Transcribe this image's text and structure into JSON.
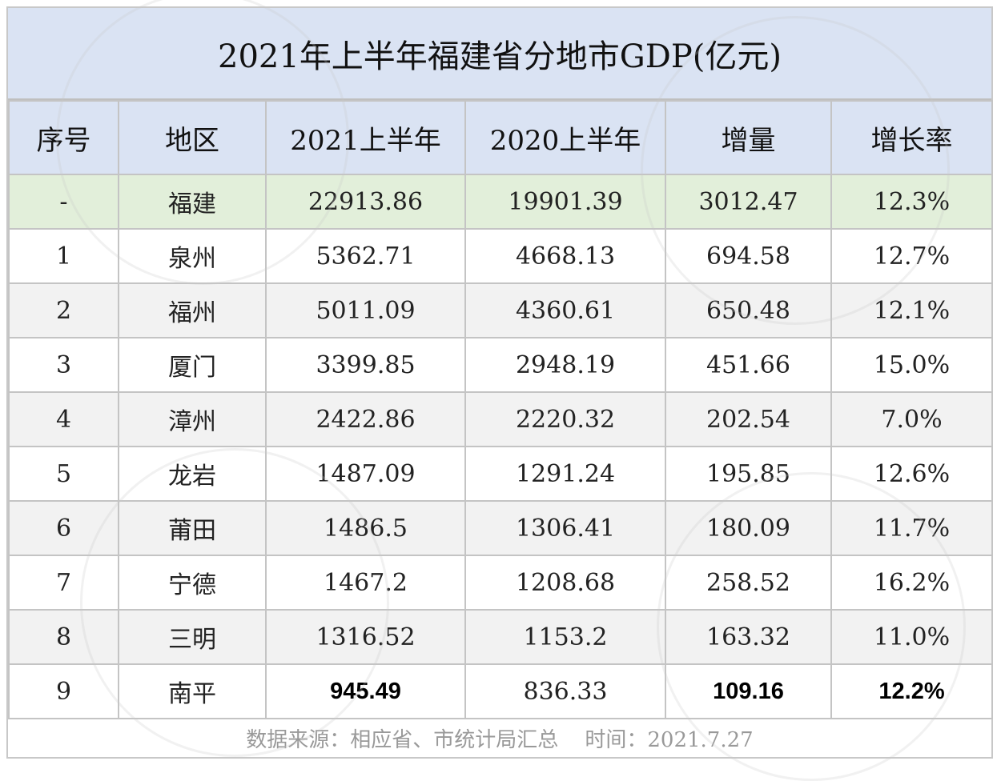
{
  "title": "2021年上半年福建省分地市GDP(亿元)",
  "headers": [
    "序号",
    "地区",
    "2021上半年",
    "2020上半年",
    "增量",
    "增长率"
  ],
  "rows": [
    [
      "-",
      "福建",
      "22913.86",
      "19901.39",
      "3012.47",
      "12.3%"
    ],
    [
      "1",
      "泉州",
      "5362.71",
      "4668.13",
      "694.58",
      "12.7%"
    ],
    [
      "2",
      "福州",
      "5011.09",
      "4360.61",
      "650.48",
      "12.1%"
    ],
    [
      "3",
      "厦门",
      "3399.85",
      "2948.19",
      "451.66",
      "15.0%"
    ],
    [
      "4",
      "漳州",
      "2422.86",
      "2220.32",
      "202.54",
      "7.0%"
    ],
    [
      "5",
      "龙岩",
      "1487.09",
      "1291.24",
      "195.85",
      "12.6%"
    ],
    [
      "6",
      "莆田",
      "1486.5",
      "1306.41",
      "180.09",
      "11.7%"
    ],
    [
      "7",
      "宁德",
      "1467.2",
      "1208.68",
      "258.52",
      "16.2%"
    ],
    [
      "8",
      "三明",
      "1316.52",
      "1153.2",
      "163.32",
      "11.0%"
    ],
    [
      "9",
      "南平",
      "945.49",
      "836.33",
      "109.16",
      "12.2%"
    ]
  ],
  "footer": "数据来源：相应省、市统计局汇总    时间：2021.7.27",
  "colors": {
    "header_bg": "#dae3f3",
    "total_row_bg": "#e2efda",
    "alt_row_bg": "#f2f2f2"
  }
}
